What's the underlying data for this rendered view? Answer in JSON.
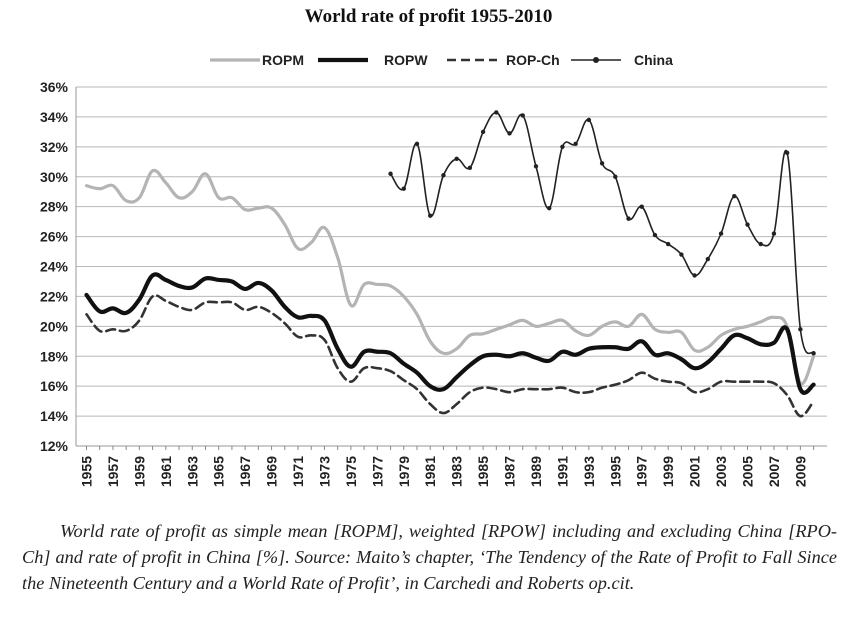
{
  "title": "World rate of profit 1955-2010",
  "caption": "World rate of profit as simple mean [ROPM], weighted [RPOW] including and excluding China [RPO-Ch] and rate of profit in China [%]. Source: Maito’s chapter, ‘The Tendency of the Rate of Profit to Fall Since the Nineteenth Century and a World Rate of Profit’, in Carchedi and Roberts op.cit.",
  "chart_data": {
    "type": "line",
    "title": "World rate of profit 1955-2010",
    "xlabel": "",
    "ylabel": "",
    "x": [
      1955,
      1956,
      1957,
      1958,
      1959,
      1960,
      1961,
      1962,
      1963,
      1964,
      1965,
      1966,
      1967,
      1968,
      1969,
      1970,
      1971,
      1972,
      1973,
      1974,
      1975,
      1976,
      1977,
      1978,
      1979,
      1980,
      1981,
      1982,
      1983,
      1984,
      1985,
      1986,
      1987,
      1988,
      1989,
      1990,
      1991,
      1992,
      1993,
      1994,
      1995,
      1996,
      1997,
      1998,
      1999,
      2000,
      2001,
      2002,
      2003,
      2004,
      2005,
      2006,
      2007,
      2008,
      2009,
      2010
    ],
    "xtick_labels": [
      "1955",
      "1957",
      "1959",
      "1961",
      "1963",
      "1965",
      "1967",
      "1969",
      "1971",
      "1973",
      "1975",
      "1977",
      "1979",
      "1981",
      "1983",
      "1985",
      "1987",
      "1989",
      "1991",
      "1993",
      "1995",
      "1997",
      "1999",
      "2001",
      "2003",
      "2005",
      "2007",
      "2009"
    ],
    "ylim": [
      12,
      36
    ],
    "ytick_labels": [
      "12%",
      "14%",
      "16%",
      "18%",
      "20%",
      "22%",
      "24%",
      "26%",
      "28%",
      "30%",
      "32%",
      "34%",
      "36%"
    ],
    "grid": "horizontal",
    "legend": "top",
    "series": [
      {
        "name": "ROPM",
        "color": "#b4b4b4",
        "style": "solid-light",
        "values": [
          29.4,
          29.2,
          29.4,
          28.4,
          28.6,
          30.4,
          29.6,
          28.6,
          29.0,
          30.2,
          28.6,
          28.6,
          27.8,
          27.9,
          27.9,
          26.8,
          25.2,
          25.6,
          26.6,
          24.6,
          21.4,
          22.8,
          22.8,
          22.7,
          22.0,
          20.8,
          19.0,
          18.2,
          18.5,
          19.4,
          19.5,
          19.8,
          20.1,
          20.4,
          20.0,
          20.2,
          20.4,
          19.7,
          19.4,
          20.0,
          20.3,
          20.0,
          20.8,
          19.8,
          19.6,
          19.6,
          18.4,
          18.6,
          19.4,
          19.8,
          20.0,
          20.3,
          20.6,
          20.0,
          16.2,
          18.0
        ]
      },
      {
        "name": "ROPW",
        "color": "#111111",
        "style": "solid-bold",
        "values": [
          22.1,
          21.0,
          21.2,
          20.9,
          21.8,
          23.4,
          23.1,
          22.7,
          22.6,
          23.2,
          23.1,
          23.0,
          22.5,
          22.9,
          22.4,
          21.3,
          20.6,
          20.7,
          20.4,
          18.5,
          17.3,
          18.3,
          18.3,
          18.2,
          17.5,
          16.9,
          16.0,
          15.8,
          16.6,
          17.4,
          18.0,
          18.1,
          18.0,
          18.2,
          17.9,
          17.7,
          18.3,
          18.1,
          18.5,
          18.6,
          18.6,
          18.5,
          19.0,
          18.1,
          18.2,
          17.8,
          17.2,
          17.6,
          18.5,
          19.4,
          19.2,
          18.8,
          18.9,
          19.8,
          15.8,
          16.1
        ]
      },
      {
        "name": "ROP-Ch",
        "color": "#333333",
        "style": "dashed",
        "values": [
          20.8,
          19.7,
          19.8,
          19.7,
          20.4,
          22.0,
          21.7,
          21.3,
          21.1,
          21.6,
          21.6,
          21.6,
          21.1,
          21.3,
          20.9,
          20.2,
          19.3,
          19.4,
          19.1,
          17.2,
          16.3,
          17.2,
          17.2,
          17.0,
          16.4,
          15.8,
          14.8,
          14.2,
          14.8,
          15.6,
          15.9,
          15.8,
          15.6,
          15.8,
          15.8,
          15.8,
          15.9,
          15.6,
          15.6,
          15.9,
          16.1,
          16.4,
          16.9,
          16.5,
          16.3,
          16.2,
          15.6,
          15.8,
          16.3,
          16.3,
          16.3,
          16.3,
          16.2,
          15.4,
          14.0,
          15.0
        ]
      },
      {
        "name": "China",
        "color": "#222222",
        "style": "solid-marker",
        "values": [
          null,
          null,
          null,
          null,
          null,
          null,
          null,
          null,
          null,
          null,
          null,
          null,
          null,
          null,
          null,
          null,
          null,
          null,
          null,
          null,
          null,
          null,
          null,
          30.2,
          29.2,
          32.2,
          27.4,
          30.1,
          31.2,
          30.6,
          33.0,
          34.3,
          32.9,
          34.1,
          30.7,
          27.9,
          32.0,
          32.2,
          33.8,
          30.9,
          30.0,
          27.2,
          28.0,
          26.1,
          25.5,
          24.8,
          23.4,
          24.5,
          26.2,
          28.7,
          26.8,
          25.5,
          26.2,
          31.6,
          19.8,
          18.2
        ]
      }
    ]
  }
}
